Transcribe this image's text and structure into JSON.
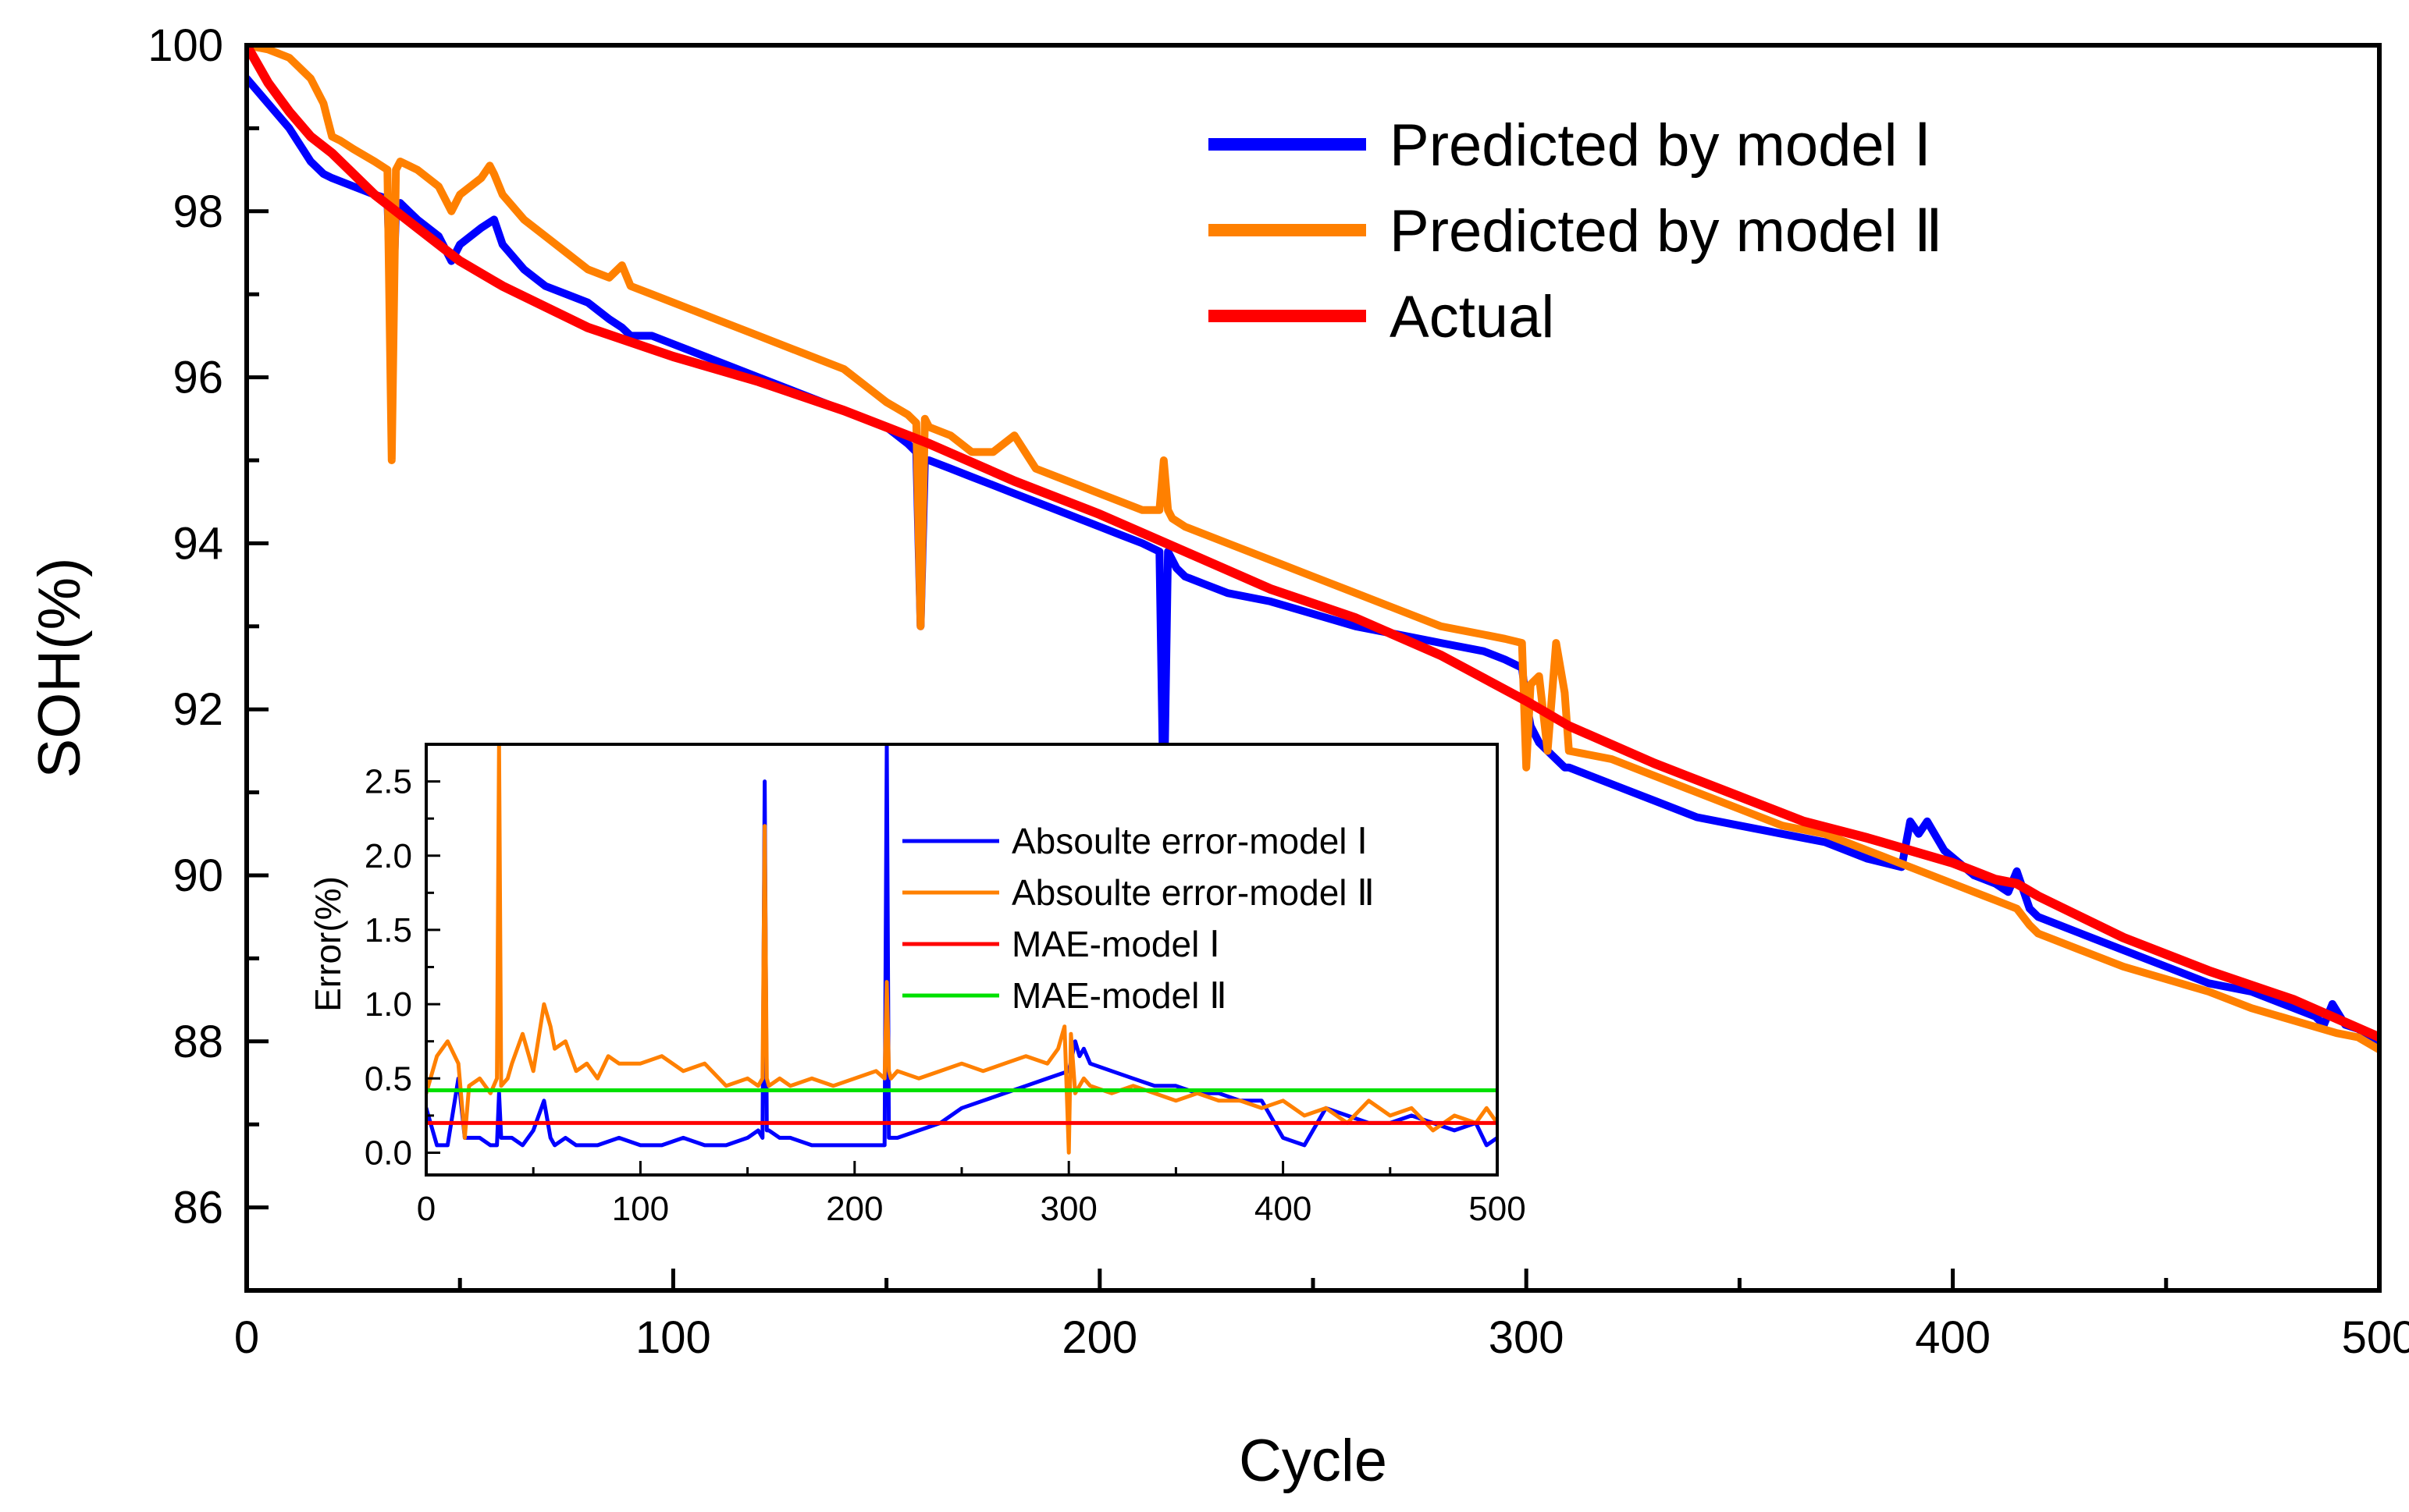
{
  "chart_data": [
    {
      "type": "line",
      "role": "main",
      "xlabel": "Cycle",
      "ylabel": "SOH(%)",
      "xlim": [
        0,
        500
      ],
      "ylim": [
        85,
        100
      ],
      "xticks": [
        0,
        100,
        200,
        300,
        400,
        500
      ],
      "yticks": [
        86,
        88,
        90,
        92,
        94,
        96,
        98,
        100
      ],
      "legend_position": "top-right",
      "series": [
        {
          "name": "Predicted by model Ⅰ",
          "color": "#0000ff",
          "x": [
            0,
            5,
            10,
            15,
            18,
            20,
            25,
            30,
            33,
            34,
            35,
            36,
            38,
            40,
            45,
            48,
            50,
            55,
            58,
            60,
            65,
            70,
            75,
            80,
            85,
            88,
            90,
            95,
            100,
            110,
            120,
            130,
            140,
            150,
            155,
            157,
            158,
            159,
            160,
            165,
            170,
            175,
            180,
            185,
            190,
            195,
            200,
            205,
            210,
            214,
            215,
            216,
            217,
            218,
            220,
            225,
            230,
            240,
            250,
            260,
            270,
            280,
            290,
            295,
            299,
            300,
            301,
            303,
            305,
            307,
            309,
            310,
            320,
            330,
            340,
            350,
            360,
            370,
            380,
            388,
            390,
            392,
            394,
            398,
            405,
            410,
            413,
            415,
            418,
            420,
            425,
            430,
            440,
            450,
            460,
            470,
            480,
            485,
            487,
            489,
            492,
            495,
            500
          ],
          "y": [
            99.6,
            99.3,
            99.0,
            98.6,
            98.45,
            98.4,
            98.3,
            98.2,
            98.15,
            96.5,
            98.0,
            98.1,
            98.0,
            97.9,
            97.7,
            97.4,
            97.6,
            97.8,
            97.9,
            97.6,
            97.3,
            97.1,
            97.0,
            96.9,
            96.7,
            96.6,
            96.5,
            96.5,
            96.4,
            96.2,
            96.0,
            95.8,
            95.6,
            95.4,
            95.2,
            95.1,
            93.0,
            95.0,
            95.0,
            94.9,
            94.8,
            94.7,
            94.6,
            94.5,
            94.4,
            94.3,
            94.2,
            94.1,
            94.0,
            93.9,
            90.7,
            93.9,
            93.8,
            93.7,
            93.6,
            93.5,
            93.4,
            93.3,
            93.15,
            93.0,
            92.9,
            92.8,
            92.7,
            92.6,
            92.5,
            92.1,
            91.8,
            91.6,
            91.5,
            91.4,
            91.3,
            91.3,
            91.1,
            90.9,
            90.7,
            90.6,
            90.5,
            90.4,
            90.2,
            90.1,
            90.65,
            90.5,
            90.65,
            90.3,
            90.0,
            89.9,
            89.8,
            90.05,
            89.6,
            89.5,
            89.4,
            89.3,
            89.1,
            88.9,
            88.7,
            88.6,
            88.4,
            88.3,
            88.2,
            88.45,
            88.2,
            88.15,
            88.0
          ]
        },
        {
          "name": "Predicted by model Ⅱ",
          "color": "#ff8000",
          "x": [
            0,
            5,
            10,
            15,
            18,
            19,
            20,
            22,
            25,
            30,
            33,
            34,
            35,
            36,
            38,
            40,
            45,
            48,
            50,
            55,
            57,
            58,
            60,
            65,
            70,
            75,
            80,
            85,
            88,
            90,
            95,
            100,
            110,
            120,
            130,
            140,
            150,
            155,
            157,
            158,
            159,
            160,
            165,
            170,
            175,
            180,
            185,
            190,
            195,
            200,
            205,
            210,
            214,
            215,
            216,
            217,
            220,
            230,
            240,
            250,
            260,
            270,
            280,
            290,
            295,
            299,
            300,
            301,
            303,
            305,
            307,
            309,
            310,
            320,
            330,
            340,
            350,
            360,
            370,
            380,
            390,
            400,
            410,
            415,
            418,
            420,
            430,
            440,
            450,
            460,
            470,
            480,
            490,
            495,
            500
          ],
          "y": [
            100.0,
            99.95,
            99.85,
            99.6,
            99.3,
            99.1,
            98.9,
            98.85,
            98.75,
            98.6,
            98.5,
            95.0,
            98.5,
            98.6,
            98.55,
            98.5,
            98.3,
            98.0,
            98.2,
            98.4,
            98.55,
            98.45,
            98.2,
            97.9,
            97.7,
            97.5,
            97.3,
            97.2,
            97.35,
            97.1,
            97.0,
            96.9,
            96.7,
            96.5,
            96.3,
            96.1,
            95.7,
            95.55,
            95.45,
            93.0,
            95.5,
            95.4,
            95.3,
            95.1,
            95.1,
            95.3,
            94.9,
            94.8,
            94.7,
            94.6,
            94.5,
            94.4,
            94.4,
            95.0,
            94.4,
            94.3,
            94.2,
            94.0,
            93.8,
            93.6,
            93.4,
            93.2,
            93.0,
            92.9,
            92.85,
            92.8,
            91.3,
            92.3,
            92.4,
            91.5,
            92.8,
            92.2,
            91.5,
            91.4,
            91.2,
            91.0,
            90.8,
            90.6,
            90.5,
            90.3,
            90.1,
            89.9,
            89.7,
            89.6,
            89.4,
            89.3,
            89.1,
            88.9,
            88.75,
            88.6,
            88.4,
            88.25,
            88.1,
            88.05,
            87.9
          ]
        },
        {
          "name": "Actual",
          "color": "#ff0000",
          "x": [
            0,
            5,
            10,
            15,
            20,
            30,
            40,
            50,
            60,
            80,
            100,
            120,
            140,
            160,
            180,
            200,
            220,
            240,
            260,
            280,
            300,
            310,
            330,
            350,
            365,
            380,
            400,
            410,
            415,
            420,
            440,
            460,
            480,
            500
          ],
          "y": [
            100.0,
            99.55,
            99.2,
            98.9,
            98.7,
            98.2,
            97.8,
            97.4,
            97.1,
            96.6,
            96.25,
            95.95,
            95.6,
            95.2,
            94.75,
            94.35,
            93.9,
            93.45,
            93.1,
            92.65,
            92.1,
            91.8,
            91.35,
            90.95,
            90.65,
            90.45,
            90.15,
            89.95,
            89.9,
            89.75,
            89.25,
            88.85,
            88.5,
            88.05
          ]
        }
      ]
    },
    {
      "type": "line",
      "role": "inset",
      "xlabel": "",
      "ylabel": "Error(%)",
      "xlim": [
        0,
        500
      ],
      "ylim": [
        -0.15,
        2.75
      ],
      "xticks": [
        0,
        100,
        200,
        300,
        400,
        500
      ],
      "yticks": [
        0.0,
        0.5,
        1.0,
        1.5,
        2.0,
        2.5
      ],
      "legend_position": "top-right",
      "series": [
        {
          "name": "Absoulte error-model Ⅰ",
          "color": "#0000ff",
          "x": [
            0,
            5,
            10,
            15,
            18,
            20,
            25,
            30,
            33,
            34,
            35,
            38,
            40,
            45,
            50,
            55,
            58,
            60,
            65,
            70,
            75,
            80,
            90,
            100,
            110,
            120,
            130,
            140,
            150,
            155,
            157,
            158,
            159,
            160,
            165,
            170,
            180,
            190,
            200,
            210,
            214,
            215,
            216,
            217,
            220,
            230,
            240,
            250,
            260,
            270,
            280,
            290,
            300,
            303,
            305,
            307,
            310,
            320,
            330,
            340,
            350,
            360,
            370,
            380,
            390,
            400,
            410,
            420,
            430,
            440,
            450,
            460,
            470,
            480,
            490,
            495,
            500
          ],
          "y": [
            0.3,
            0.05,
            0.05,
            0.5,
            0.1,
            0.1,
            0.1,
            0.05,
            0.05,
            0.4,
            0.1,
            0.1,
            0.1,
            0.05,
            0.15,
            0.35,
            0.1,
            0.05,
            0.1,
            0.05,
            0.05,
            0.05,
            0.1,
            0.05,
            0.05,
            0.1,
            0.05,
            0.05,
            0.1,
            0.15,
            0.1,
            2.5,
            0.15,
            0.15,
            0.1,
            0.1,
            0.05,
            0.05,
            0.05,
            0.05,
            0.05,
            2.75,
            0.1,
            0.1,
            0.1,
            0.15,
            0.2,
            0.3,
            0.35,
            0.4,
            0.45,
            0.5,
            0.55,
            0.75,
            0.65,
            0.7,
            0.6,
            0.55,
            0.5,
            0.45,
            0.45,
            0.4,
            0.4,
            0.35,
            0.35,
            0.1,
            0.05,
            0.3,
            0.25,
            0.2,
            0.2,
            0.25,
            0.2,
            0.15,
            0.2,
            0.05,
            0.1
          ]
        },
        {
          "name": "Absoulte error-model Ⅱ",
          "color": "#ff8000",
          "x": [
            0,
            5,
            10,
            15,
            18,
            20,
            25,
            30,
            33,
            34,
            35,
            38,
            40,
            45,
            50,
            55,
            58,
            60,
            65,
            70,
            75,
            80,
            85,
            90,
            100,
            110,
            120,
            130,
            140,
            150,
            155,
            157,
            158,
            159,
            160,
            165,
            170,
            180,
            190,
            200,
            210,
            214,
            215,
            216,
            217,
            220,
            230,
            240,
            250,
            260,
            270,
            280,
            290,
            295,
            298,
            300,
            301,
            303,
            305,
            307,
            310,
            320,
            330,
            340,
            350,
            360,
            370,
            380,
            390,
            400,
            410,
            420,
            430,
            440,
            450,
            460,
            470,
            480,
            490,
            495,
            500
          ],
          "y": [
            0.4,
            0.65,
            0.75,
            0.6,
            0.1,
            0.45,
            0.5,
            0.4,
            0.5,
            2.75,
            0.45,
            0.5,
            0.6,
            0.8,
            0.55,
            1.0,
            0.85,
            0.7,
            0.75,
            0.55,
            0.6,
            0.5,
            0.65,
            0.6,
            0.6,
            0.65,
            0.55,
            0.6,
            0.45,
            0.5,
            0.45,
            0.5,
            2.2,
            0.5,
            0.45,
            0.5,
            0.45,
            0.5,
            0.45,
            0.5,
            0.55,
            0.5,
            1.15,
            0.55,
            0.5,
            0.55,
            0.5,
            0.55,
            0.6,
            0.55,
            0.6,
            0.65,
            0.6,
            0.7,
            0.85,
            0.0,
            0.8,
            0.4,
            0.45,
            0.5,
            0.45,
            0.4,
            0.45,
            0.4,
            0.35,
            0.4,
            0.35,
            0.35,
            0.3,
            0.35,
            0.25,
            0.3,
            0.2,
            0.35,
            0.25,
            0.3,
            0.15,
            0.25,
            0.2,
            0.3,
            0.2
          ]
        },
        {
          "name": "MAE-model Ⅰ",
          "color": "#ff0000",
          "x": [
            0,
            500
          ],
          "y": [
            0.2,
            0.2
          ]
        },
        {
          "name": "MAE-model Ⅱ",
          "color": "#00e000",
          "x": [
            0,
            500
          ],
          "y": [
            0.42,
            0.42
          ]
        }
      ]
    }
  ]
}
